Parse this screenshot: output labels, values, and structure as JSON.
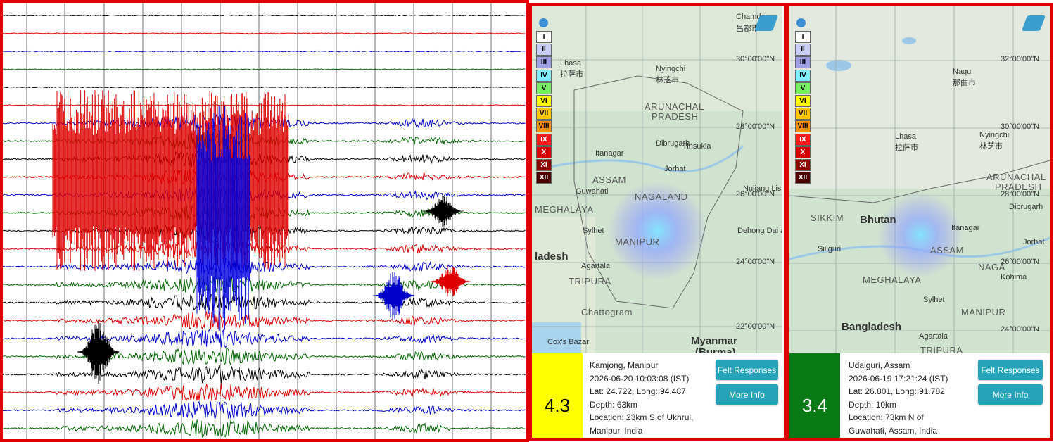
{
  "intensity_scale": [
    "I",
    "II",
    "III",
    "IV",
    "V",
    "VI",
    "VII",
    "VIII",
    "IX",
    "X",
    "XI",
    "XII"
  ],
  "panels": [
    {
      "map_labels": [
        "Chamdo",
        "昌都市",
        "Lhasa",
        "拉萨市",
        "Nyingchi",
        "林芝市",
        "ARUNACHAL",
        "PRADESH",
        "Dibrugarh",
        "Tinsukia",
        "Itanagar",
        "Jorhat",
        "ASSAM",
        "Guwahati",
        "MEGHALAYA",
        "NAGALAND",
        "MANIPUR",
        "Sylhet",
        "Agartala",
        "TRIPURA",
        "Chattogram",
        "Cox's Bazar",
        "Myanmar",
        "(Burma)",
        "ladesh",
        "Nujiang Lisu",
        "Dehong Dai and Jingpo"
      ],
      "coordinates": [
        "30°00'00\"N",
        "28°00'00\"N",
        "26°00'00\"N",
        "24°00'00\"N",
        "22°00'00\"N"
      ],
      "event": {
        "magnitude": 4.3,
        "place": "Kamjong, Manipur",
        "time": "2026-06-20 10:03:08 (IST)",
        "lat_long": "Lat: 24.722, Long: 94.487",
        "depth": "Depth: 63km",
        "location": "Location: 23km S of Ukhrul, Manipur, India"
      },
      "buttons": [
        "Felt Responses",
        "More Info"
      ]
    },
    {
      "map_labels": [
        "Naqu",
        "那曲市",
        "Lhasa",
        "拉萨市",
        "Nyingchi",
        "林芝市",
        "ARUNACHAL",
        "PRADESH",
        "Dibrugarh",
        "SIKKIM",
        "Bhutan",
        "Itanagar",
        "ASSAM",
        "Jorhat",
        "Siliguri",
        "NAGA",
        "Kohima",
        "MEGHALAYA",
        "MANIPUR",
        "Sylhet",
        "Bangladesh",
        "Agartala",
        "TRIPURA"
      ],
      "coordinates": [
        "32°00'00\"N",
        "30°00'00\"N",
        "28°00'00\"N",
        "26°00'00\"N",
        "24°00'00\"N"
      ],
      "event": {
        "magnitude": 3.4,
        "place": "Udalguri, Assam",
        "time": "2026-06-19 17:21:24 (IST)",
        "lat_long": "Lat: 26.801, Long: 91.782",
        "depth": "Depth: 10km",
        "location": "Location: 73km N of Guwahati, Assam, India"
      },
      "buttons": [
        "Felt Responses",
        "More Info"
      ]
    }
  ]
}
